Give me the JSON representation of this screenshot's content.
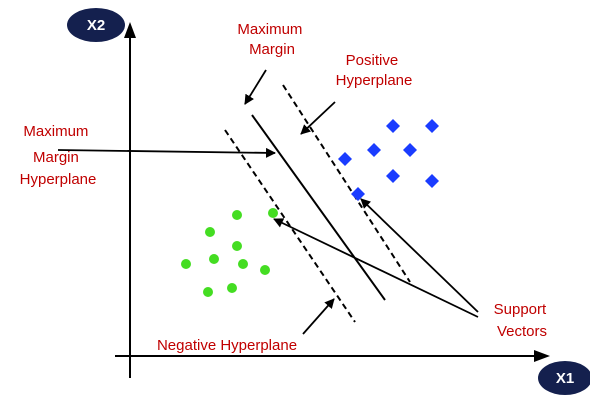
{
  "axes": {
    "x_label": "X1",
    "y_label": "X2"
  },
  "labels": {
    "maximum_margin": [
      "Maximum",
      "Margin"
    ],
    "positive_hyperplane": [
      "Positive",
      "Hyperplane"
    ],
    "maximum_margin_hyperplane": [
      "Maximum",
      "Margin",
      "Hyperplane"
    ],
    "support_vectors": [
      "Support",
      "Vectors"
    ],
    "negative_hyperplane": "Negative Hyperplane"
  },
  "colors": {
    "label_text": "#c00000",
    "axis_badge": "#14204e",
    "positive_class": "#1a3cff",
    "negative_class": "#44dd22",
    "lines": "#000000"
  },
  "icons": {
    "positive_class": "diamond",
    "negative_class": "circle"
  }
}
